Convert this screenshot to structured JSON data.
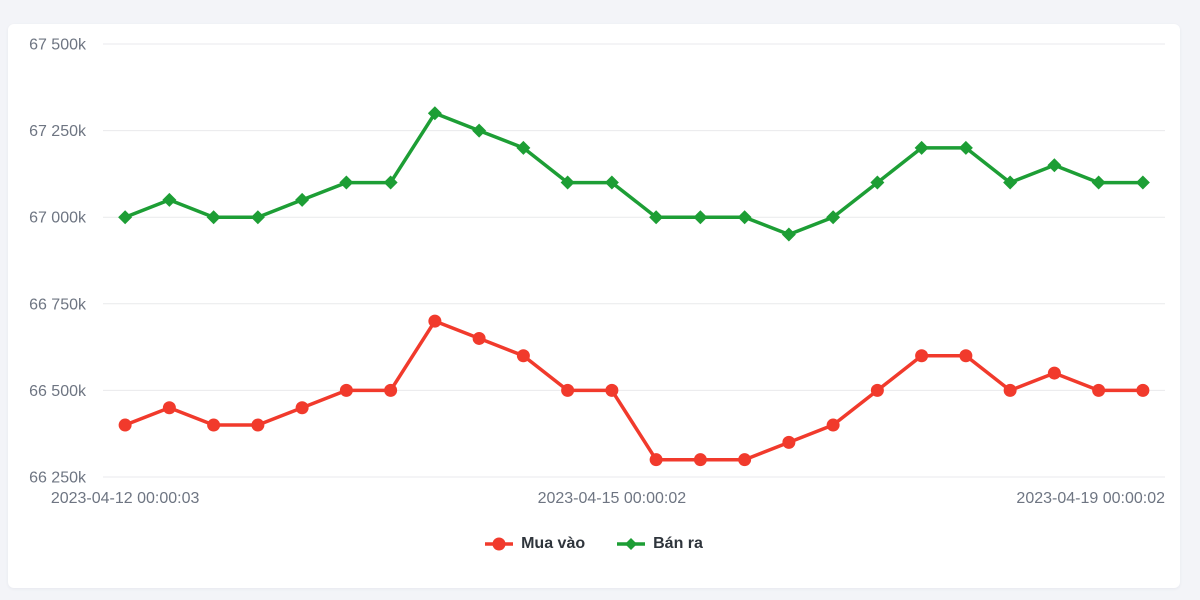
{
  "page": {
    "background": "#f3f4f8",
    "card_background": "#ffffff"
  },
  "chart_data": {
    "type": "line",
    "title": "",
    "xlabel": "",
    "ylabel": "",
    "ylim": [
      66250,
      67500
    ],
    "grid": "horizontal",
    "grid_color": "#e9eaec",
    "axis_label_color": "#6e7582",
    "legend_position": "bottom-center",
    "y_ticks": [
      66250,
      66500,
      66750,
      67000,
      67250,
      67500
    ],
    "y_tick_labels": [
      "66 250k",
      "66 500k",
      "66 750k",
      "67 000k",
      "67 250k",
      "67 500k"
    ],
    "x_tick_labels": [
      {
        "index": 0,
        "label": "2023-04-12 00:00:03"
      },
      {
        "index": 11,
        "label": "2023-04-15 00:00:02"
      },
      {
        "index": 22,
        "label": "2023-04-19 00:00:02"
      }
    ],
    "series": [
      {
        "name": "Mua vào",
        "color": "#f13a2c",
        "marker": "circle",
        "values": [
          66400,
          66450,
          66400,
          66400,
          66450,
          66500,
          66500,
          66700,
          66650,
          66600,
          66500,
          66500,
          66300,
          66300,
          66300,
          66350,
          66400,
          66500,
          66600,
          66600,
          66500,
          66550,
          66500,
          66500
        ]
      },
      {
        "name": "Bán ra",
        "color": "#1d9e35",
        "marker": "diamond",
        "values": [
          67000,
          67050,
          67000,
          67000,
          67050,
          67100,
          67100,
          67300,
          67250,
          67200,
          67100,
          67100,
          67000,
          67000,
          67000,
          66950,
          67000,
          67100,
          67200,
          67200,
          67100,
          67150,
          67100,
          67100
        ]
      }
    ]
  }
}
